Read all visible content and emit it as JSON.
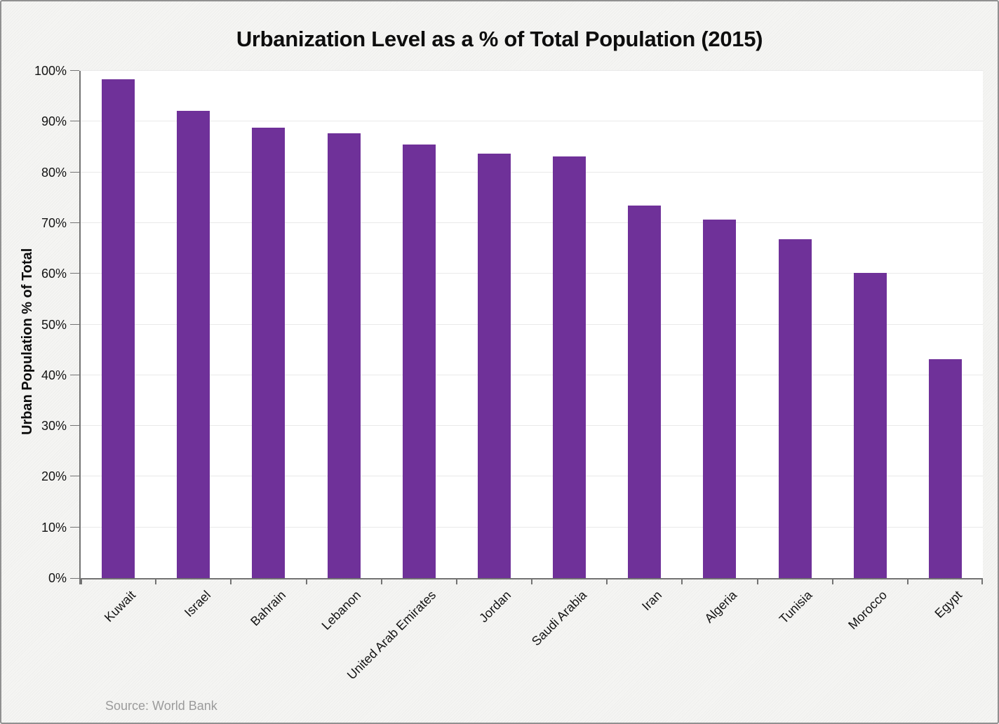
{
  "frame": {
    "background_color": "#f5f5f3",
    "border_color": "#909090",
    "plot_background_color": "#ffffff"
  },
  "chart_data": {
    "type": "bar",
    "title": "Urbanization Level as a % of Total Population (2015)",
    "ylabel": "Urban Population % of Total",
    "xlabel": "",
    "categories": [
      "Kuwait",
      "Israel",
      "Bahrain",
      "Lebanon",
      "United Arab Emirates",
      "Jordan",
      "Saudi Arabia",
      "Iran",
      "Algeria",
      "Tunisia",
      "Morocco",
      "Egypt"
    ],
    "values": [
      98.3,
      92.1,
      88.8,
      87.7,
      85.5,
      83.7,
      83.1,
      73.4,
      70.7,
      66.8,
      60.2,
      43.1
    ],
    "ylim": [
      0,
      100
    ],
    "yticks": [
      0,
      10,
      20,
      30,
      40,
      50,
      60,
      70,
      80,
      90,
      100
    ],
    "ytick_labels": [
      "0%",
      "10%",
      "20%",
      "30%",
      "40%",
      "50%",
      "60%",
      "70%",
      "80%",
      "90%",
      "100%"
    ],
    "grid": true,
    "legend": "none",
    "bar_color": "#6F3199",
    "axis_color": "#737373",
    "gridline_color": "#e9e9e9",
    "source": "Source: World Bank"
  }
}
